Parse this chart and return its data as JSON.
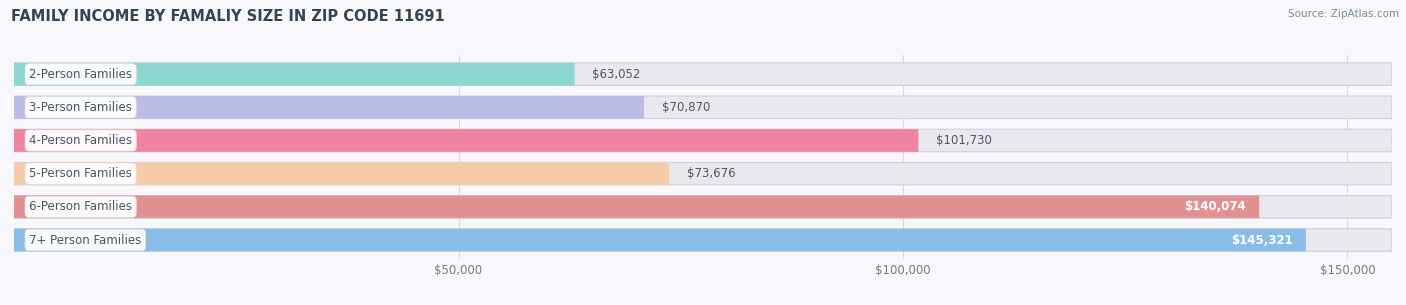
{
  "title": "FAMILY INCOME BY FAMALIY SIZE IN ZIP CODE 11691",
  "source": "Source: ZipAtlas.com",
  "categories": [
    "2-Person Families",
    "3-Person Families",
    "4-Person Families",
    "5-Person Families",
    "6-Person Families",
    "7+ Person Families"
  ],
  "values": [
    63052,
    70870,
    101730,
    73676,
    140074,
    145321
  ],
  "labels": [
    "$63,052",
    "$70,870",
    "$101,730",
    "$73,676",
    "$140,074",
    "$145,321"
  ],
  "colors": [
    "#82d4d0",
    "#b8b8e8",
    "#f07898",
    "#f8c8a0",
    "#e08888",
    "#80b8e8"
  ],
  "bar_bg_color": "#e8e8ee",
  "background_color": "#f8f8fc",
  "xlim": [
    0,
    155000
  ],
  "xticks": [
    50000,
    100000,
    150000
  ],
  "xticklabels": [
    "$50,000",
    "$100,000",
    "$150,000"
  ],
  "title_fontsize": 10.5,
  "label_fontsize": 8.5,
  "tick_fontsize": 8.5,
  "category_fontsize": 8.5,
  "grid_color": "#d8d8e4",
  "inside_label_threshold": 120000
}
